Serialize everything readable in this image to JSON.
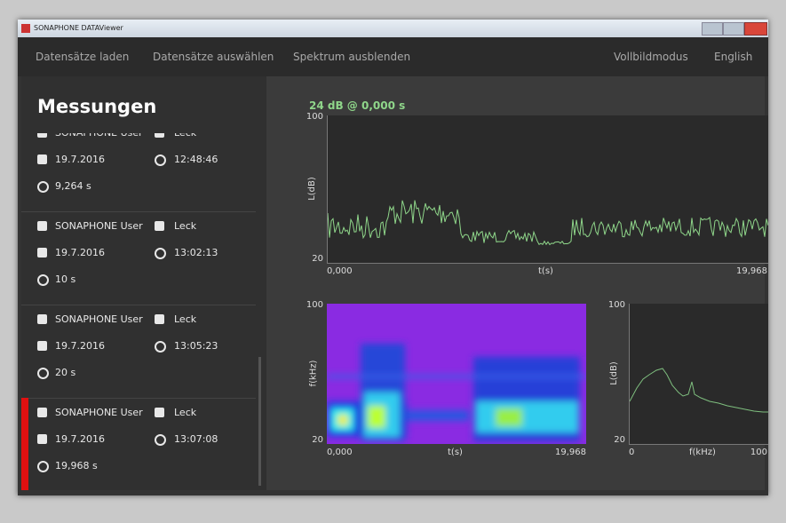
{
  "window": {
    "title": "SONAPHONE DATAViewer"
  },
  "menu": {
    "left": [
      "Datensätze laden",
      "Datensätze auswählen",
      "Spektrum ausblenden"
    ],
    "right": [
      "Vollbildmodus",
      "English"
    ]
  },
  "sidebar": {
    "title": "Messungen",
    "measurements": [
      {
        "user": "SONAPHONE User",
        "type": "Leck",
        "date": "19.7.2016",
        "time": "12:48:46",
        "duration": "9,264 s"
      },
      {
        "user": "SONAPHONE User",
        "type": "Leck",
        "date": "19.7.2016",
        "time": "13:02:13",
        "duration": "10 s"
      },
      {
        "user": "SONAPHONE User",
        "type": "Leck",
        "date": "19.7.2016",
        "time": "13:05:23",
        "duration": "20 s"
      },
      {
        "user": "SONAPHONE User",
        "type": "Leck",
        "date": "19.7.2016",
        "time": "13:07:08",
        "duration": "19,968 s"
      }
    ]
  },
  "level_chart": {
    "readout": "24 dB @ 0,000 s",
    "y_label": "L(dB)",
    "y_top": 100,
    "y_bottom": 20,
    "x_label": "t(s)",
    "x_start": "0,000",
    "x_end": "19,968"
  },
  "spectrogram": {
    "y_label": "f(kHz)",
    "y_top": 100,
    "y_bottom": 20,
    "x_label": "t(s)",
    "x_start": "0,000",
    "x_end": "19,968"
  },
  "spectrum": {
    "y_label": "L(dB)",
    "y_top": 100,
    "y_bottom": 20,
    "x_label": "f(kHz)",
    "x_start": 0,
    "x_end": 100
  }
}
